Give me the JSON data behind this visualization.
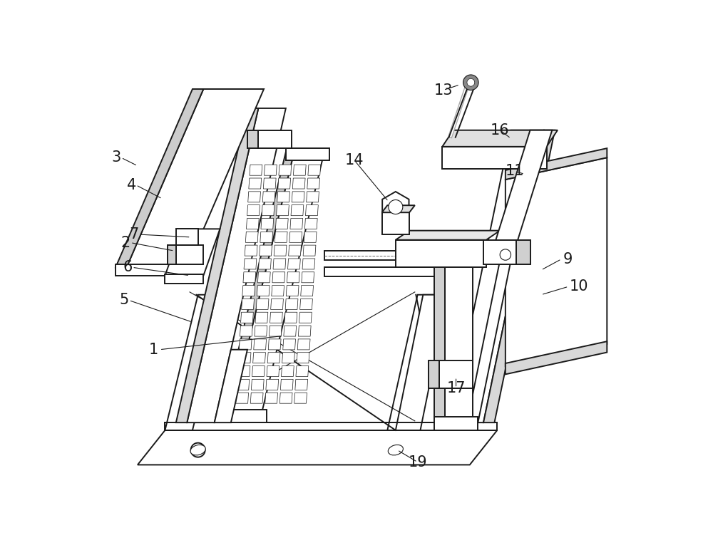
{
  "bg": "#ffffff",
  "lc": "#1a1a1a",
  "lw": 1.4,
  "lw_thin": 0.8,
  "fig_w": 10.0,
  "fig_h": 7.72,
  "dpi": 100,
  "label_fs": 15,
  "labels": [
    [
      "1",
      1.05,
      2.55
    ],
    [
      "2",
      0.55,
      4.5
    ],
    [
      "3",
      0.38,
      6.05
    ],
    [
      "4",
      0.65,
      5.55
    ],
    [
      "5",
      0.52,
      3.45
    ],
    [
      "6",
      0.58,
      4.05
    ],
    [
      "7",
      0.7,
      4.65
    ],
    [
      "9",
      8.6,
      4.2
    ],
    [
      "10",
      8.72,
      3.7
    ],
    [
      "11",
      7.55,
      5.8
    ],
    [
      "13",
      6.25,
      7.28
    ],
    [
      "14",
      4.62,
      6.0
    ],
    [
      "16",
      7.28,
      6.55
    ],
    [
      "17",
      6.48,
      1.85
    ],
    [
      "19",
      5.78,
      0.5
    ]
  ]
}
